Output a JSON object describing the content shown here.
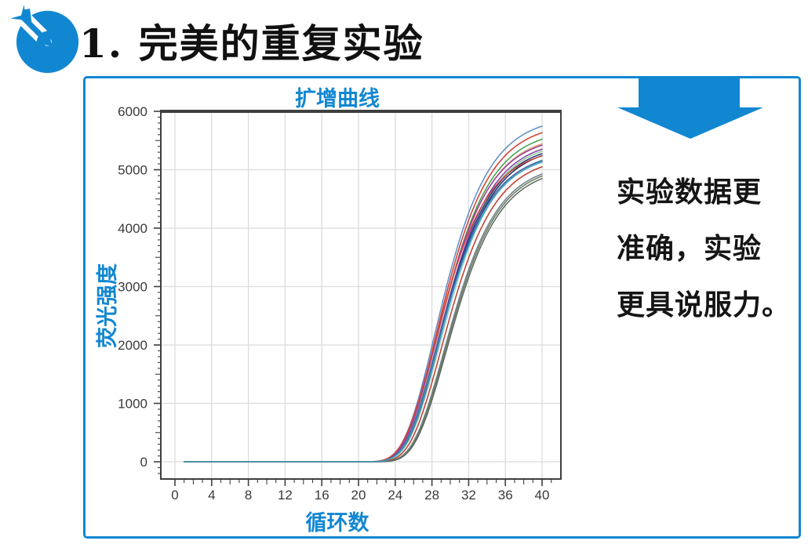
{
  "accent": "#1287d1",
  "header": {
    "title": "1. 完美的重复实验"
  },
  "panel": {
    "note_lines": [
      "实验数据更",
      "准确，实验",
      "更具说服力。"
    ]
  },
  "chart_data": {
    "type": "line",
    "title": "扩增曲线",
    "xlabel": "循环数",
    "ylabel": "荧光强度",
    "xlim": [
      -1.54,
      42.05
    ],
    "ylim": [
      -295,
      6000
    ],
    "x_major_ticks": [
      0,
      4,
      8,
      12,
      16,
      20,
      24,
      28,
      32,
      36,
      40
    ],
    "x_minor_step": 1,
    "y_major_ticks": [
      0,
      1000,
      2000,
      3000,
      4000,
      5000,
      6000
    ],
    "y_minor_step": 100,
    "grid": {
      "vertical_at_x_major": true,
      "horizontal_at_y_major": true,
      "color": "#dcdcdc"
    },
    "axis_color": "#3f3f3f",
    "tick_label_color": "#3a3a3a",
    "legend": "none",
    "curve_model": "gompertz: y = plateau*exp(-exp(-rate*(cycle-midpoint)))",
    "x_range": [
      1,
      40
    ],
    "rate": 0.3,
    "series": [
      {
        "color": "#5b8ec4",
        "plateau": 5920,
        "midpoint": 28.3
      },
      {
        "color": "#d03b32",
        "plateau": 5810,
        "midpoint": 28.4
      },
      {
        "color": "#3fa04a",
        "plateau": 5700,
        "midpoint": 28.5
      },
      {
        "color": "#d9a877",
        "plateau": 5620,
        "midpoint": 28.5
      },
      {
        "color": "#a13a9e",
        "plateau": 5590,
        "midpoint": 28.4
      },
      {
        "color": "#7d3fa8",
        "plateau": 5530,
        "midpoint": 28.6
      },
      {
        "color": "#8fc98f",
        "plateau": 5500,
        "midpoint": 28.7
      },
      {
        "color": "#243b7a",
        "plateau": 5450,
        "midpoint": 28.6
      },
      {
        "color": "#1d2b5f",
        "plateau": 5420,
        "midpoint": 28.7
      },
      {
        "color": "#d04a42",
        "plateau": 5390,
        "midpoint": 28.2
      },
      {
        "color": "#9fd6d2",
        "plateau": 5350,
        "midpoint": 28.8
      },
      {
        "color": "#3a5fa8",
        "plateau": 5320,
        "midpoint": 28.5
      },
      {
        "color": "#c0392b",
        "plateau": 5240,
        "midpoint": 29.0
      },
      {
        "color": "#6b7f8c",
        "plateau": 5130,
        "midpoint": 29.3
      },
      {
        "color": "#707a5c",
        "plateau": 5100,
        "midpoint": 29.4
      },
      {
        "color": "#5a6b66",
        "plateau": 5060,
        "midpoint": 29.5
      },
      {
        "color": "#3d9fb8",
        "plateau": 5300,
        "midpoint": 28.6
      }
    ]
  }
}
